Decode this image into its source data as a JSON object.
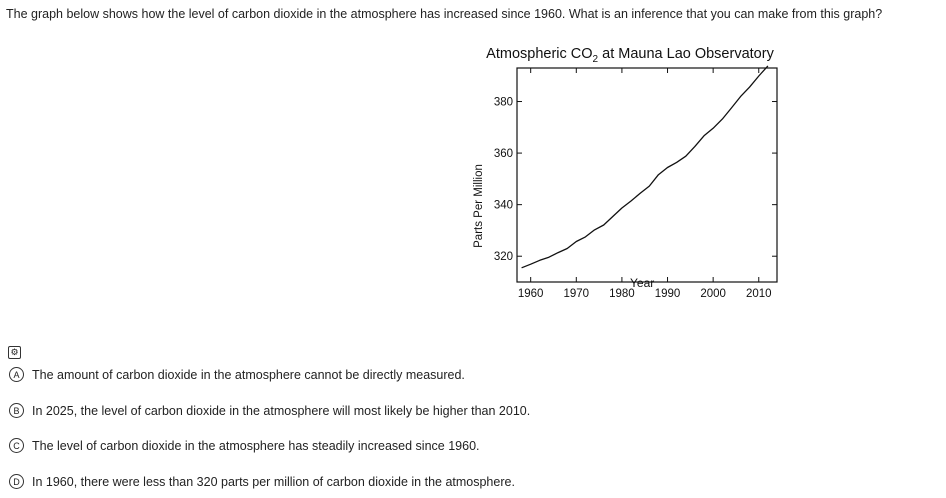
{
  "question": "The graph below shows how the level of carbon dioxide in the atmosphere has increased since 1960. What is an inference that you can make from this graph?",
  "chart": {
    "title_main": "Atmospheric CO",
    "title_sub": "2",
    "title_rest": " at Mauna Lao Observatory",
    "ylabel": "Parts Per Million",
    "xlabel": "Year"
  },
  "chart_data": {
    "type": "line",
    "title": "Atmospheric CO2 at Mauna Lao Observatory",
    "xlabel": "Year",
    "ylabel": "Parts Per Million",
    "xlim": [
      1957,
      2014
    ],
    "ylim": [
      310,
      393
    ],
    "x_ticks": [
      1960,
      1970,
      1980,
      1990,
      2000,
      2010
    ],
    "y_ticks": [
      320,
      340,
      360,
      380
    ],
    "grid": false,
    "series": [
      {
        "x": [
          1958,
          1960,
          1962,
          1964,
          1966,
          1968,
          1970,
          1972,
          1974,
          1976,
          1978,
          1980,
          1982,
          1984,
          1986,
          1988,
          1990,
          1992,
          1994,
          1996,
          1998,
          2000,
          2002,
          2004,
          2006,
          2008,
          2010,
          2012
        ],
        "y": [
          315.5,
          316.9,
          318.4,
          319.6,
          321.4,
          323.0,
          325.7,
          327.5,
          330.2,
          332.1,
          335.4,
          338.7,
          341.4,
          344.4,
          347.2,
          351.6,
          354.4,
          356.4,
          358.8,
          362.6,
          366.7,
          369.6,
          373.2,
          377.5,
          381.9,
          385.6,
          389.9,
          393.8
        ]
      }
    ]
  },
  "tools_icon_label": "⚙",
  "choices": [
    {
      "letter": "A",
      "text": "The amount of carbon dioxide in the atmosphere cannot be directly measured."
    },
    {
      "letter": "B",
      "text": "In 2025, the level of carbon dioxide in the atmosphere will most likely be higher than 2010."
    },
    {
      "letter": "C",
      "text": "The level of carbon dioxide in the atmosphere has steadily increased since 1960."
    },
    {
      "letter": "D",
      "text": "In 1960, there were less than 320 parts per million of carbon dioxide in the atmosphere."
    }
  ]
}
